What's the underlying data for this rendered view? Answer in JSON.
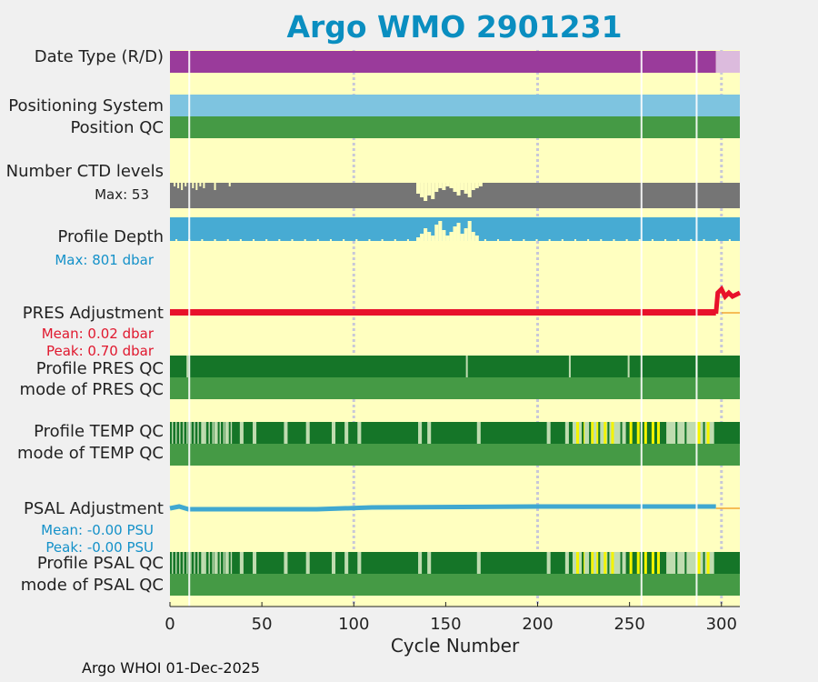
{
  "title": "Argo WMO 2901231",
  "footer": "Argo WHOI 01-Dec-2025",
  "row_labels": {
    "date_type": "Date Type (R/D)",
    "positioning_system": "Positioning System",
    "position_qc": "Position QC",
    "ctd_levels": "Number CTD levels",
    "ctd_max": "Max: 53",
    "profile_depth": "Profile Depth",
    "depth_max": "Max:  801 dbar",
    "pres_adjustment": "PRES Adjustment",
    "pres_mean": "Mean: 0.02 dbar",
    "pres_peak": "Peak: 0.70 dbar",
    "profile_pres_qc": "Profile PRES QC",
    "mode_pres_qc": "mode of PRES QC",
    "profile_temp_qc": "Profile TEMP QC",
    "mode_temp_qc": "mode of TEMP QC",
    "psal_adjustment": "PSAL Adjustment",
    "psal_mean": "Mean: -0.00 PSU",
    "psal_peak": "Peak: -0.00 PSU",
    "profile_psal_qc": "Profile PSAL QC",
    "mode_psal_qc": "mode of PSAL QC"
  },
  "chart_data": {
    "type": "heatmap",
    "title": "Argo WMO 2901231",
    "xlabel": "Cycle Number",
    "xlim": [
      0,
      310
    ],
    "xticks": [
      0,
      50,
      100,
      150,
      200,
      250,
      300
    ],
    "grid": "dotted vertical at 100, 200, 300",
    "gap_cycles": [
      10,
      256,
      286
    ],
    "colors": {
      "background": "#ffffc0",
      "realtime": "#9a3b9b",
      "delayed": "#dcbbdd",
      "positioning": "#7ec4e0",
      "qc_good": "#459a45",
      "qc_dark": "#157528",
      "qc_light": "#c0dcb0",
      "qc_yellow": "#f4f400",
      "ctd": "#757575",
      "depth": "#47abd3",
      "pres_line": "#e8112a",
      "psal_line": "#40a8d0",
      "adjust_tail": "#f3a733"
    },
    "date_type": {
      "realtime_until_cycle": 297,
      "delayed_from_cycle": 297
    },
    "ctd_levels": {
      "max": 53,
      "typical": 44,
      "dip_cycles": [
        136,
        148,
        158,
        165
      ]
    },
    "profile_depth": {
      "max_dbar": 801
    },
    "pres_adjustment": {
      "mean_dbar": 0.02,
      "peak_dbar": 0.7,
      "jump_cycle": 297
    },
    "psal_adjustment": {
      "mean_psu": -0.0,
      "peak_psu": -0.0
    },
    "profile_temp_qc_light_cycles": [
      17,
      24,
      30,
      38,
      45,
      62,
      74,
      88,
      95,
      102,
      135,
      140,
      167,
      205,
      215
    ],
    "profile_temp_qc_yellow_cycles": [
      221,
      224,
      229,
      232,
      236,
      240,
      250,
      254,
      258,
      262,
      265,
      287,
      292
    ],
    "profile_temp_qc_light_ranges": [
      [
        219,
        248
      ],
      [
        270,
        296
      ]
    ],
    "profile_pres_qc_light_cycles": [
      9,
      161,
      217,
      249,
      286
    ]
  }
}
